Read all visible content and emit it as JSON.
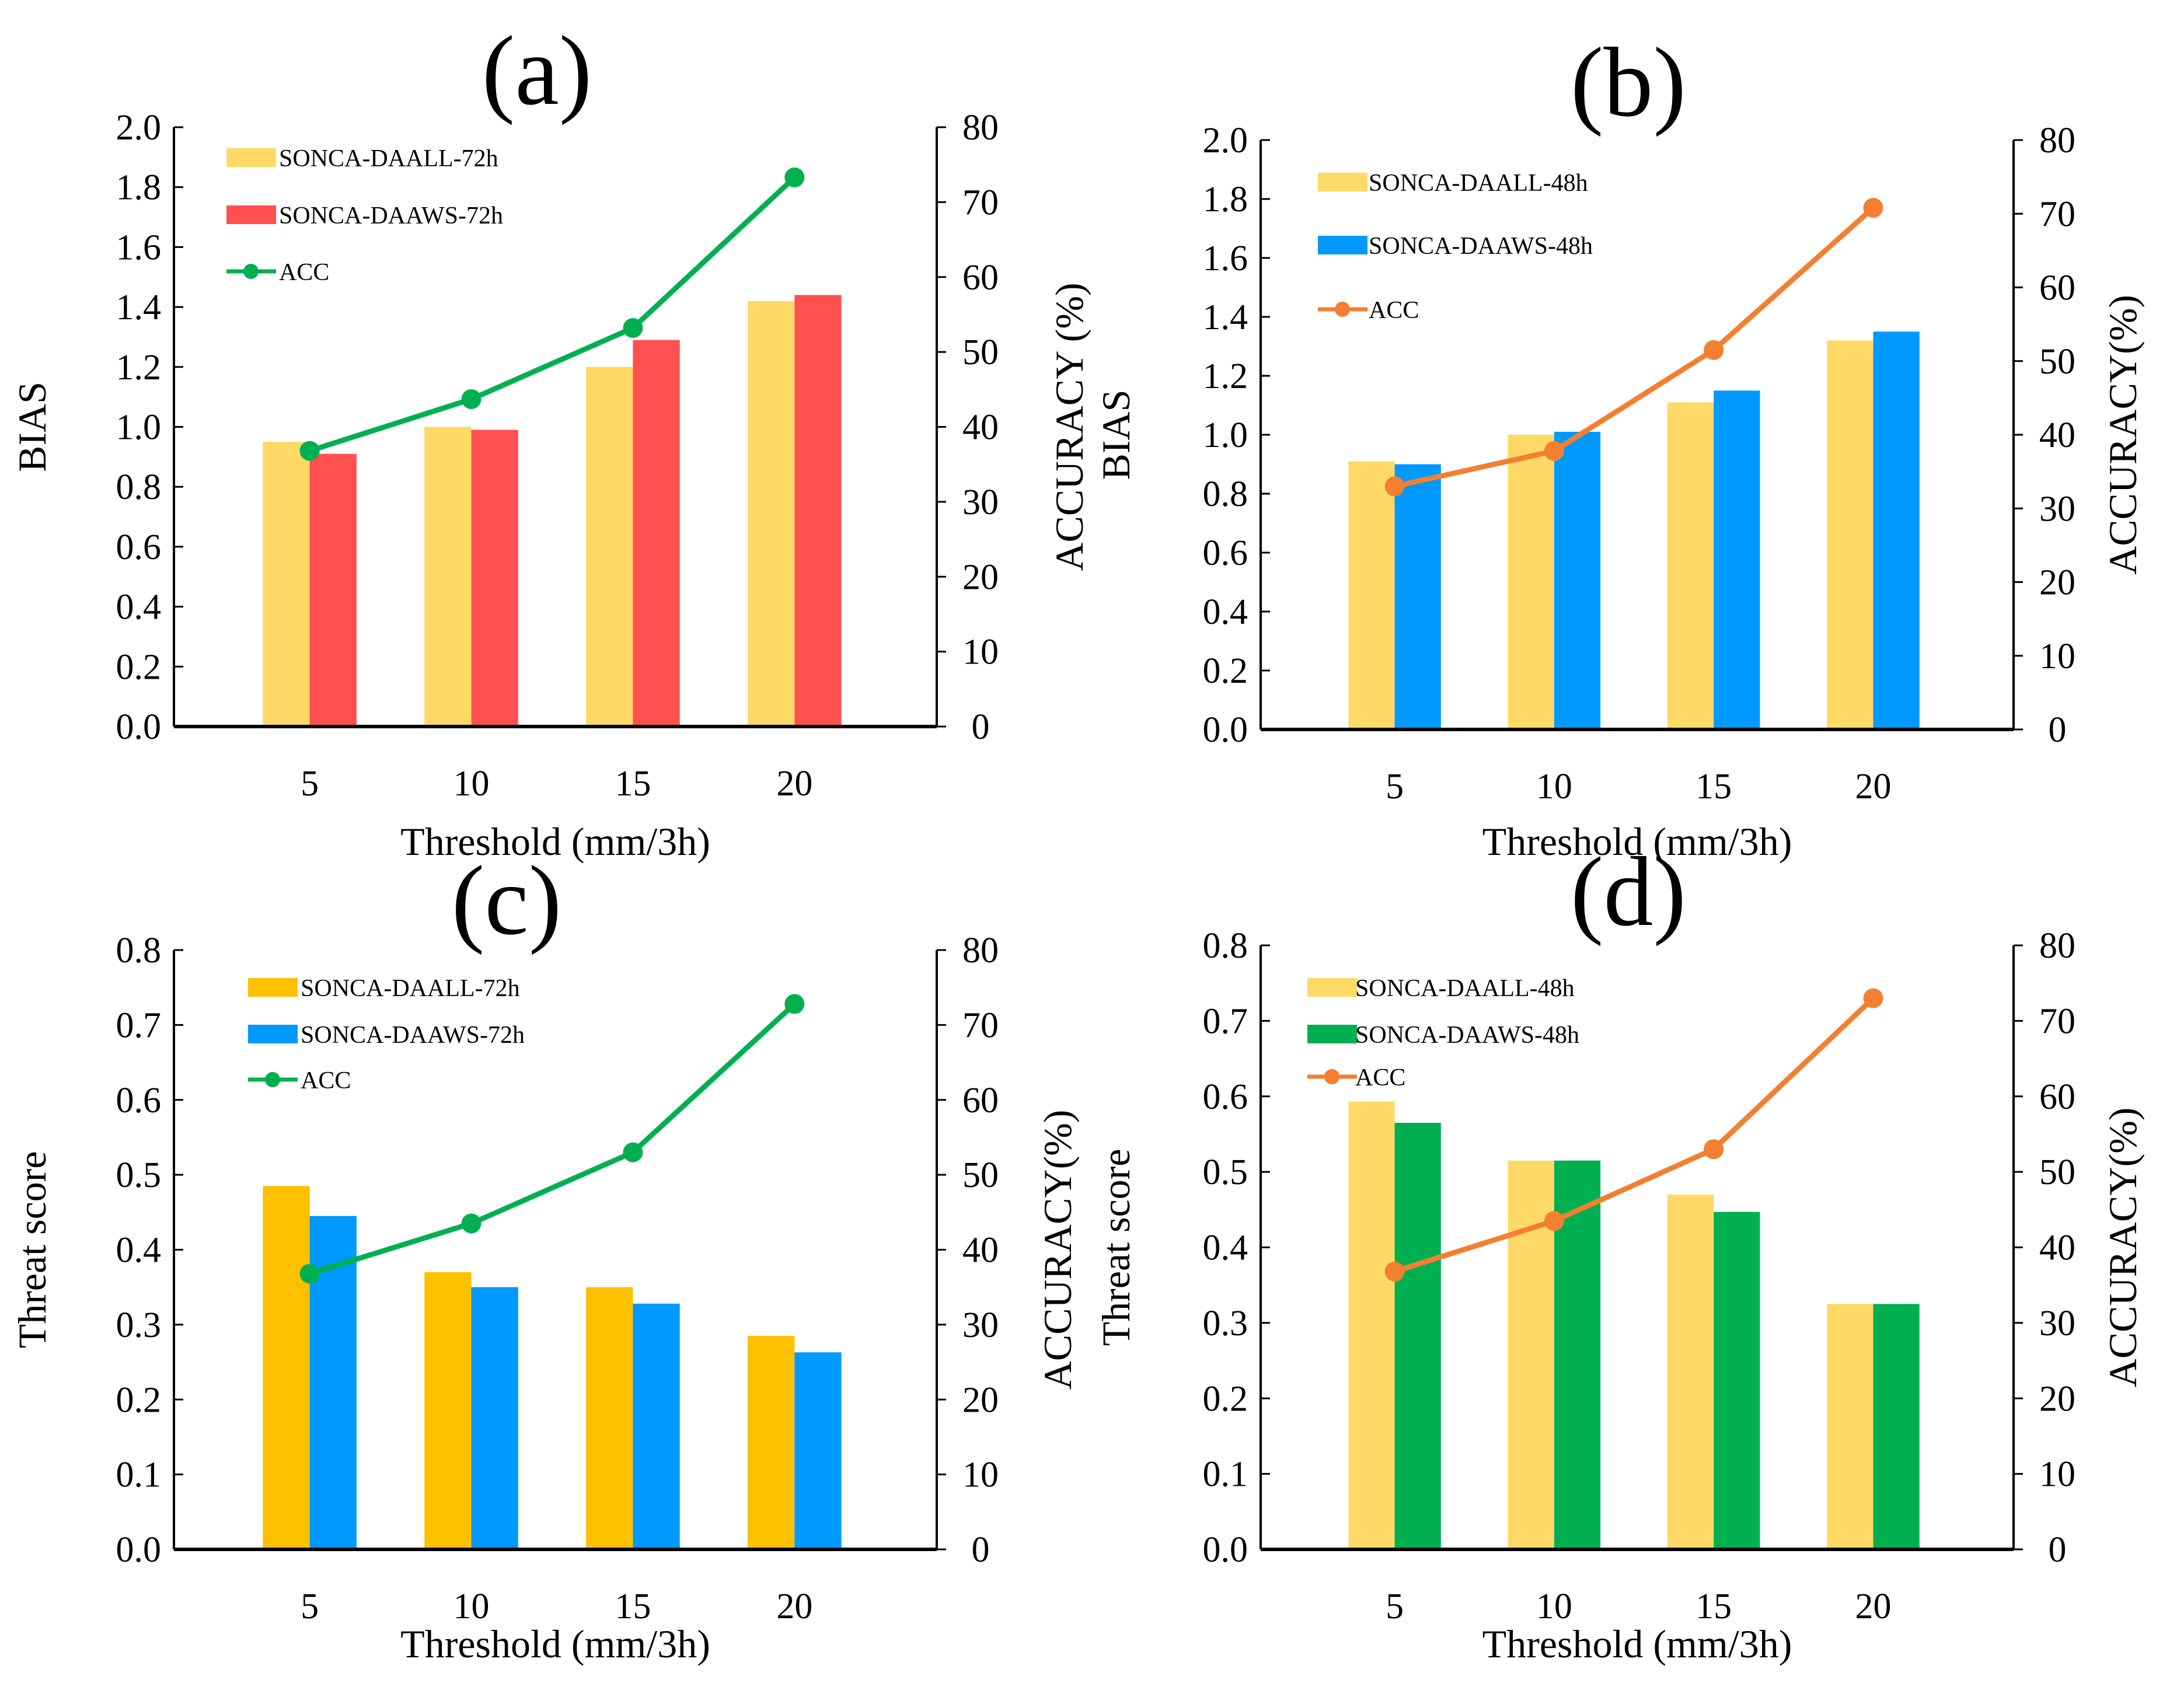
{
  "chart_data": [
    {
      "type": "bar",
      "panel": "(a)",
      "categories": [
        "5",
        "10",
        "15",
        "20"
      ],
      "series": [
        {
          "name": "SONCA-DAALL-72h",
          "values": [
            0.95,
            1.0,
            1.2,
            1.42
          ],
          "color": "#FFD966"
        },
        {
          "name": "SONCA-DAAWS-72h",
          "values": [
            0.91,
            0.99,
            1.29,
            1.44
          ],
          "color": "#FF5050"
        }
      ],
      "line": {
        "name": "ACC",
        "values": [
          36.8,
          43.7,
          53.2,
          73.3
        ],
        "color": "#00B050"
      },
      "xlabel": "Threshold (mm/3h)",
      "ylabel": "BIAS",
      "ylabel_right": "ACCURACY (%)",
      "ylim": [
        0,
        2.0
      ],
      "ystep": 0.2,
      "ylim_right": [
        0,
        80
      ],
      "ystep_right": 10
    },
    {
      "type": "bar",
      "panel": "(b)",
      "categories": [
        "5",
        "10",
        "15",
        "20"
      ],
      "series": [
        {
          "name": "SONCA-DAALL-48h",
          "values": [
            0.91,
            1.0,
            1.11,
            1.32
          ],
          "color": "#FFD966"
        },
        {
          "name": "SONCA-DAAWS-48h",
          "values": [
            0.9,
            1.01,
            1.15,
            1.35
          ],
          "color": "#0099FF"
        }
      ],
      "line": {
        "name": "ACC",
        "values": [
          33.0,
          37.8,
          51.5,
          70.8
        ],
        "color": "#F47F30"
      },
      "xlabel": "Threshold (mm/3h)",
      "ylabel": "BIAS",
      "ylabel_right": "ACCURACY(%)",
      "ylim": [
        0,
        2.0
      ],
      "ystep": 0.2,
      "ylim_right": [
        0,
        80
      ],
      "ystep_right": 10
    },
    {
      "type": "bar",
      "panel": "(c)",
      "categories": [
        "5",
        "10",
        "15",
        "20"
      ],
      "series": [
        {
          "name": "SONCA-DAALL-72h",
          "values": [
            0.485,
            0.37,
            0.35,
            0.285
          ],
          "color": "#FFC000"
        },
        {
          "name": "SONCA-DAAWS-72h",
          "values": [
            0.445,
            0.35,
            0.328,
            0.263
          ],
          "color": "#0099FF"
        }
      ],
      "line": {
        "name": "ACC",
        "values": [
          36.8,
          43.5,
          53.0,
          72.8
        ],
        "color": "#00B050"
      },
      "xlabel": "Threshold (mm/3h)",
      "ylabel": "Threat score",
      "ylabel_right": "ACCURACY(%)",
      "ylim": [
        0,
        0.8
      ],
      "ystep": 0.1,
      "ylim_right": [
        0,
        80
      ],
      "ystep_right": 10
    },
    {
      "type": "bar",
      "panel": "(d)",
      "categories": [
        "5",
        "10",
        "15",
        "20"
      ],
      "series": [
        {
          "name": "SONCA-DAALL-48h",
          "values": [
            0.593,
            0.515,
            0.47,
            0.325
          ],
          "color": "#FFD966"
        },
        {
          "name": "SONCA-DAAWS-48h",
          "values": [
            0.565,
            0.515,
            0.447,
            0.325
          ],
          "color": "#00B050"
        }
      ],
      "line": {
        "name": "ACC",
        "values": [
          36.8,
          43.5,
          53.0,
          73.0
        ],
        "color": "#F47F30"
      },
      "xlabel": "Threshold (mm/3h)",
      "ylabel": "Threat score",
      "ylabel_right": "ACCURACY(%)",
      "ylim": [
        0,
        0.8
      ],
      "ystep": 0.1,
      "ylim_right": [
        0,
        80
      ],
      "ystep_right": 10
    }
  ]
}
